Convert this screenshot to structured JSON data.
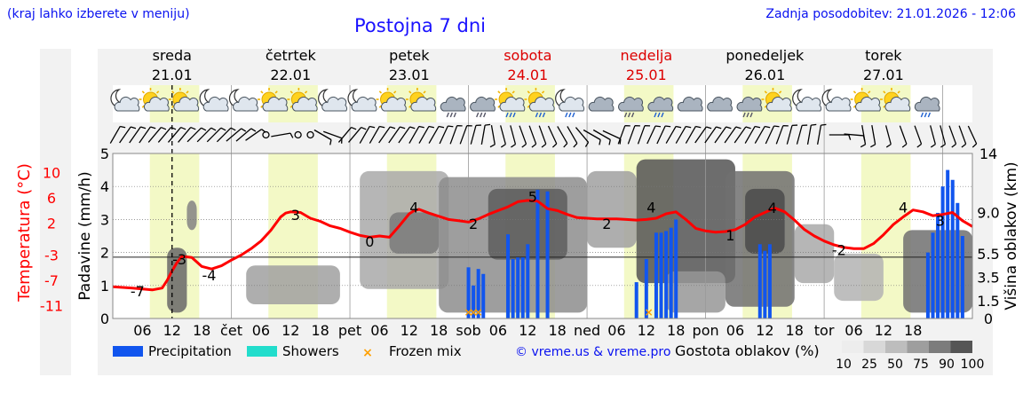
{
  "header": {
    "note": "(kraj lahko izberete v meniju)",
    "title": "Postojna 7 dni",
    "updated": "Zadnja posodobitev: 21.01.2026 - 12:06"
  },
  "footer": {
    "credit": "© vreme.us & vreme.pro",
    "legend_labels": [
      "Precipitation",
      "Showers",
      "Frozen mix"
    ],
    "cloud_title": "Gostota oblakov (%)",
    "cloud_ticks": [
      "10",
      "25",
      "50",
      "75",
      "90",
      "100"
    ],
    "cloud_scale_colors": [
      "#ededed",
      "#d8d8d8",
      "#bdbdbd",
      "#9e9e9e",
      "#7c7c7c",
      "#555555"
    ]
  },
  "colors": {
    "temperature": "#ff0000",
    "precipitation": "#1155ee",
    "showers": "#22ddcc",
    "frozen": "#ffa000",
    "daylight": "#f3f9c6",
    "title": "#1a12ff",
    "weekend": "#dd0000"
  },
  "chart_data": {
    "type": "line+bar",
    "title": "Postojna 7 dni",
    "days": [
      {
        "name": "sreda",
        "date": "21.01",
        "weekend": false
      },
      {
        "name": "četrtek",
        "date": "22.01",
        "weekend": false
      },
      {
        "name": "petek",
        "date": "23.01",
        "weekend": false
      },
      {
        "name": "sobota",
        "date": "24.01",
        "weekend": true
      },
      {
        "name": "nedelja",
        "date": "25.01",
        "weekend": true
      },
      {
        "name": "ponedeljek",
        "date": "26.01",
        "weekend": false
      },
      {
        "name": "torek",
        "date": "27.01",
        "weekend": false
      }
    ],
    "x_range_hours": [
      0,
      174
    ],
    "now_hour": 12,
    "x_ticks": [
      {
        "h": 6,
        "label": "06"
      },
      {
        "h": 12,
        "label": "12"
      },
      {
        "h": 18,
        "label": "18"
      },
      {
        "h": 24,
        "label": "čet"
      },
      {
        "h": 30,
        "label": "06"
      },
      {
        "h": 36,
        "label": "12"
      },
      {
        "h": 42,
        "label": "18"
      },
      {
        "h": 48,
        "label": "pet"
      },
      {
        "h": 54,
        "label": "06"
      },
      {
        "h": 60,
        "label": "12"
      },
      {
        "h": 66,
        "label": "18"
      },
      {
        "h": 72,
        "label": "sob"
      },
      {
        "h": 78,
        "label": "06"
      },
      {
        "h": 84,
        "label": "12"
      },
      {
        "h": 90,
        "label": "18"
      },
      {
        "h": 96,
        "label": "ned"
      },
      {
        "h": 102,
        "label": "06"
      },
      {
        "h": 108,
        "label": "12"
      },
      {
        "h": 114,
        "label": "18"
      },
      {
        "h": 120,
        "label": "pon"
      },
      {
        "h": 126,
        "label": "06"
      },
      {
        "h": 132,
        "label": "12"
      },
      {
        "h": 138,
        "label": "18"
      },
      {
        "h": 144,
        "label": "tor"
      },
      {
        "h": 150,
        "label": "06"
      },
      {
        "h": 156,
        "label": "12"
      },
      {
        "h": 162,
        "label": "18"
      }
    ],
    "daylight_hours": [
      [
        7.5,
        17.5
      ],
      [
        31.5,
        41.5
      ],
      [
        55.5,
        65.5
      ],
      [
        79.5,
        89.5
      ],
      [
        103.5,
        113.5
      ],
      [
        127.5,
        137.5
      ],
      [
        151.5,
        161.5
      ]
    ],
    "left_axis": {
      "label": "Padavine (mm/h)",
      "range": [
        0,
        5
      ],
      "ticks": [
        "0",
        "1",
        "2",
        "3",
        "4",
        "5"
      ]
    },
    "temperature_axis": {
      "label": "Temperatura (°C)",
      "range": [
        -13,
        13
      ],
      "ticks": [
        10,
        6,
        2,
        -3,
        -7,
        -11
      ]
    },
    "right_axis": {
      "label": "Višina oblakov (km)",
      "range": [
        0,
        14
      ],
      "ticks": [
        {
          "v": 0,
          "label": "0"
        },
        {
          "v": 1.5,
          "label": "1.5"
        },
        {
          "v": 3.5,
          "label": "3.5"
        },
        {
          "v": 5.5,
          "label": "5.5"
        },
        {
          "v": 9.0,
          "label": "9.0"
        },
        {
          "v": 14,
          "label": "14"
        }
      ]
    },
    "zero_degree_level_km": 5.2,
    "temperature": {
      "hours": [
        0,
        4,
        8,
        10,
        11,
        12,
        13,
        14,
        16,
        18,
        20,
        22,
        24,
        26,
        28,
        30,
        32,
        34,
        35,
        36,
        38,
        40,
        42,
        44,
        46,
        48,
        50,
        52,
        54,
        56,
        58,
        60,
        61,
        62,
        64,
        66,
        68,
        70,
        72,
        74,
        76,
        78,
        80,
        82,
        84,
        86,
        88,
        90,
        92,
        94,
        96,
        98,
        100,
        102,
        104,
        106,
        108,
        110,
        112,
        114,
        116,
        118,
        120,
        122,
        124,
        126,
        128,
        130,
        132,
        134,
        136,
        138,
        140,
        142,
        144,
        146,
        148,
        150,
        152,
        154,
        156,
        158,
        160,
        162,
        164,
        166,
        168,
        170,
        172,
        174
      ],
      "values": [
        -8.0,
        -8.2,
        -8.5,
        -8.2,
        -7.0,
        -5.5,
        -4.2,
        -3.2,
        -3.4,
        -4.8,
        -5.2,
        -4.7,
        -3.8,
        -3.0,
        -2.0,
        -0.8,
        0.9,
        3.0,
        3.6,
        3.8,
        3.7,
        2.8,
        2.3,
        1.6,
        1.2,
        0.6,
        0.1,
        -0.2,
        0.0,
        -0.2,
        1.6,
        3.5,
        4.0,
        4.2,
        3.6,
        3.1,
        2.6,
        2.4,
        2.2,
        2.7,
        3.4,
        4.0,
        4.6,
        5.4,
        5.6,
        5.5,
        4.3,
        4.0,
        3.4,
        2.9,
        2.8,
        2.7,
        2.7,
        2.7,
        2.6,
        2.5,
        2.6,
        2.8,
        3.5,
        3.8,
        2.6,
        1.2,
        0.8,
        0.6,
        0.7,
        1.0,
        1.8,
        3.0,
        3.7,
        4.4,
        3.8,
        2.5,
        1.0,
        0.0,
        -0.8,
        -1.4,
        -1.8,
        -2.0,
        -2.0,
        -1.2,
        0.2,
        1.8,
        3.0,
        4.1,
        3.8,
        3.2,
        3.4,
        3.7,
        2.4,
        1.5
      ]
    },
    "temperature_labels": [
      {
        "h": 5,
        "v": -9.5,
        "label": "-7"
      },
      {
        "h": 13.5,
        "v": -4.5,
        "label": "-3"
      },
      {
        "h": 19.5,
        "v": -7.0,
        "label": "-4"
      },
      {
        "h": 37,
        "v": 2.5,
        "label": "3"
      },
      {
        "h": 52,
        "v": -1.7,
        "label": "0"
      },
      {
        "h": 61,
        "v": 3.7,
        "label": "4"
      },
      {
        "h": 73,
        "v": 1.1,
        "label": "2"
      },
      {
        "h": 85,
        "v": 5.4,
        "label": "5"
      },
      {
        "h": 100,
        "v": 1.1,
        "label": "2"
      },
      {
        "h": 109,
        "v": 3.7,
        "label": "4"
      },
      {
        "h": 125,
        "v": -0.7,
        "label": "1"
      },
      {
        "h": 133.5,
        "v": 3.6,
        "label": "4"
      },
      {
        "h": 147,
        "v": -3.0,
        "label": "-2"
      },
      {
        "h": 160,
        "v": 3.7,
        "label": "4"
      },
      {
        "h": 167.5,
        "v": 1.6,
        "label": "3"
      }
    ],
    "precipitation_bars": [
      {
        "h": 72.0,
        "mm": 1.55
      },
      {
        "h": 73.0,
        "mm": 1.0
      },
      {
        "h": 74.0,
        "mm": 1.5
      },
      {
        "h": 75.0,
        "mm": 1.35
      },
      {
        "h": 80.0,
        "mm": 2.55
      },
      {
        "h": 81.0,
        "mm": 1.8
      },
      {
        "h": 82.0,
        "mm": 1.85
      },
      {
        "h": 83.0,
        "mm": 1.85
      },
      {
        "h": 84.0,
        "mm": 2.25
      },
      {
        "h": 86.0,
        "mm": 3.9
      },
      {
        "h": 88.0,
        "mm": 3.85
      },
      {
        "h": 106.0,
        "mm": 1.1
      },
      {
        "h": 108.0,
        "mm": 1.8
      },
      {
        "h": 110.0,
        "mm": 2.6
      },
      {
        "h": 111.0,
        "mm": 2.6
      },
      {
        "h": 112.0,
        "mm": 2.65
      },
      {
        "h": 113.0,
        "mm": 2.75
      },
      {
        "h": 114.0,
        "mm": 3.0
      },
      {
        "h": 131.0,
        "mm": 2.25
      },
      {
        "h": 132.0,
        "mm": 2.05
      },
      {
        "h": 133.0,
        "mm": 2.25
      },
      {
        "h": 165.0,
        "mm": 2.0
      },
      {
        "h": 166.0,
        "mm": 2.6
      },
      {
        "h": 167.0,
        "mm": 3.2
      },
      {
        "h": 168.0,
        "mm": 4.0
      },
      {
        "h": 169.0,
        "mm": 4.5
      },
      {
        "h": 170.0,
        "mm": 4.2
      },
      {
        "h": 171.0,
        "mm": 3.5
      },
      {
        "h": 172.0,
        "mm": 2.5
      }
    ],
    "frozen_mix_hours": [
      72.0,
      73.0,
      74.0,
      108.5
    ],
    "cloud_blobs": [
      {
        "h0": 11,
        "h1": 15,
        "km0": 0.5,
        "km1": 6,
        "d": 75
      },
      {
        "h0": 15,
        "h1": 17,
        "km0": 7.5,
        "km1": 10,
        "d": 60
      },
      {
        "h0": 27,
        "h1": 46,
        "km0": 1.2,
        "km1": 4.5,
        "d": 45
      },
      {
        "h0": 50,
        "h1": 68,
        "km0": 2.5,
        "km1": 12.5,
        "d": 40
      },
      {
        "h0": 56,
        "h1": 66,
        "km0": 5.5,
        "km1": 9.0,
        "d": 65
      },
      {
        "h0": 66,
        "h1": 96,
        "km0": 0.5,
        "km1": 12.0,
        "d": 55
      },
      {
        "h0": 76,
        "h1": 92,
        "km0": 5.0,
        "km1": 11.0,
        "d": 80
      },
      {
        "h0": 96,
        "h1": 106,
        "km0": 6.0,
        "km1": 12.5,
        "d": 45
      },
      {
        "h0": 106,
        "h1": 126,
        "km0": 3.0,
        "km1": 13.5,
        "d": 85
      },
      {
        "h0": 112,
        "h1": 124,
        "km0": 0.5,
        "km1": 4.0,
        "d": 50
      },
      {
        "h0": 124,
        "h1": 138,
        "km0": 1.0,
        "km1": 12.5,
        "d": 70
      },
      {
        "h0": 128,
        "h1": 136,
        "km0": 5.5,
        "km1": 11.0,
        "d": 90
      },
      {
        "h0": 138,
        "h1": 146,
        "km0": 3.0,
        "km1": 8.0,
        "d": 40
      },
      {
        "h0": 146,
        "h1": 156,
        "km0": 1.5,
        "km1": 5.5,
        "d": 35
      },
      {
        "h0": 160,
        "h1": 174,
        "km0": 0.5,
        "km1": 7.5,
        "d": 70
      }
    ],
    "weather_symbols": [
      {
        "h": 2,
        "icon": "moon-cloud"
      },
      {
        "h": 8,
        "icon": "sun-cloud"
      },
      {
        "h": 14,
        "icon": "sun-cloud"
      },
      {
        "h": 20,
        "icon": "moon-cloud"
      },
      {
        "h": 26,
        "icon": "moon-cloud"
      },
      {
        "h": 32,
        "icon": "sun-cloud"
      },
      {
        "h": 38,
        "icon": "sun-cloud"
      },
      {
        "h": 44,
        "icon": "moon-cloud"
      },
      {
        "h": 50,
        "icon": "moon-cloud"
      },
      {
        "h": 56,
        "icon": "sun-cloud"
      },
      {
        "h": 62,
        "icon": "sun-cloud"
      },
      {
        "h": 68,
        "icon": "cloud-snow"
      },
      {
        "h": 74,
        "icon": "cloud-snow"
      },
      {
        "h": 80,
        "icon": "sun-rain"
      },
      {
        "h": 86,
        "icon": "sun-rain"
      },
      {
        "h": 92,
        "icon": "moon-rain"
      },
      {
        "h": 98,
        "icon": "cloud"
      },
      {
        "h": 104,
        "icon": "cloud-snow"
      },
      {
        "h": 110,
        "icon": "cloud-rain"
      },
      {
        "h": 116,
        "icon": "cloud"
      },
      {
        "h": 122,
        "icon": "cloud"
      },
      {
        "h": 128,
        "icon": "cloud-snow"
      },
      {
        "h": 134,
        "icon": "sun-cloud"
      },
      {
        "h": 140,
        "icon": "moon-cloud"
      },
      {
        "h": 146,
        "icon": "moon-cloud"
      },
      {
        "h": 152,
        "icon": "sun-cloud"
      },
      {
        "h": 158,
        "icon": "sun-cloud"
      },
      {
        "h": 164,
        "icon": "cloud-rain"
      }
    ],
    "wind_barbs": [
      {
        "h": 0.5,
        "dir": 30,
        "kt": 10
      },
      {
        "h": 2.5,
        "dir": 35,
        "kt": 10
      },
      {
        "h": 4.5,
        "dir": 35,
        "kt": 10
      },
      {
        "h": 6.5,
        "dir": 35,
        "kt": 10
      },
      {
        "h": 8.5,
        "dir": 40,
        "kt": 10
      },
      {
        "h": 10.5,
        "dir": 40,
        "kt": 10
      },
      {
        "h": 12.5,
        "dir": 40,
        "kt": 10
      },
      {
        "h": 14.5,
        "dir": 40,
        "kt": 10
      },
      {
        "h": 16.5,
        "dir": 45,
        "kt": 10
      },
      {
        "h": 18.5,
        "dir": 45,
        "kt": 10
      },
      {
        "h": 20.5,
        "dir": 45,
        "kt": 10
      },
      {
        "h": 22.5,
        "dir": 45,
        "kt": 10
      },
      {
        "h": 24.5,
        "dir": 50,
        "kt": 10
      },
      {
        "h": 26.5,
        "dir": 50,
        "kt": 10
      },
      {
        "h": 28.5,
        "dir": 55,
        "kt": 10
      },
      {
        "h": 31.0,
        "dir": 0,
        "kt": 0
      },
      {
        "h": 34.0,
        "dir": 80,
        "kt": 10
      },
      {
        "h": 37.5,
        "dir": 0,
        "kt": 0
      },
      {
        "h": 40.0,
        "dir": 0,
        "kt": 0
      },
      {
        "h": 42.5,
        "dir": 120,
        "kt": 10
      },
      {
        "h": 44.5,
        "dir": 110,
        "kt": 10
      },
      {
        "h": 47.0,
        "dir": 40,
        "kt": 10
      },
      {
        "h": 49.0,
        "dir": 40,
        "kt": 10
      },
      {
        "h": 51.0,
        "dir": 30,
        "kt": 10
      },
      {
        "h": 53.0,
        "dir": 30,
        "kt": 10
      },
      {
        "h": 55.0,
        "dir": 35,
        "kt": 10
      },
      {
        "h": 57.0,
        "dir": 35,
        "kt": 10
      },
      {
        "h": 59.0,
        "dir": 35,
        "kt": 10
      },
      {
        "h": 61.0,
        "dir": 30,
        "kt": 10
      },
      {
        "h": 63.0,
        "dir": 30,
        "kt": 10
      },
      {
        "h": 65.0,
        "dir": 30,
        "kt": 10
      },
      {
        "h": 67.0,
        "dir": 25,
        "kt": 10
      },
      {
        "h": 69.0,
        "dir": 20,
        "kt": 10
      },
      {
        "h": 71.0,
        "dir": 20,
        "kt": 10
      },
      {
        "h": 73.0,
        "dir": 15,
        "kt": 10
      },
      {
        "h": 75.0,
        "dir": 10,
        "kt": 10
      },
      {
        "h": 77.0,
        "dir": 170,
        "kt": 10
      },
      {
        "h": 79.0,
        "dir": 165,
        "kt": 10
      },
      {
        "h": 81.0,
        "dir": 165,
        "kt": 10
      },
      {
        "h": 83.0,
        "dir": 160,
        "kt": 10
      },
      {
        "h": 85.0,
        "dir": 160,
        "kt": 10
      },
      {
        "h": 87.0,
        "dir": 160,
        "kt": 10
      },
      {
        "h": 89.0,
        "dir": 155,
        "kt": 10
      },
      {
        "h": 91.0,
        "dir": 150,
        "kt": 10
      },
      {
        "h": 93.0,
        "dir": 150,
        "kt": 10
      },
      {
        "h": 95.0,
        "dir": 140,
        "kt": 10
      },
      {
        "h": 97.0,
        "dir": 120,
        "kt": 10
      },
      {
        "h": 99.0,
        "dir": 120,
        "kt": 10
      },
      {
        "h": 101.0,
        "dir": 115,
        "kt": 10
      },
      {
        "h": 103.0,
        "dir": 20,
        "kt": 10
      },
      {
        "h": 105.0,
        "dir": 20,
        "kt": 10
      },
      {
        "h": 107.0,
        "dir": 20,
        "kt": 10
      },
      {
        "h": 109.0,
        "dir": 25,
        "kt": 10
      },
      {
        "h": 111.0,
        "dir": 25,
        "kt": 10
      },
      {
        "h": 113.0,
        "dir": 30,
        "kt": 10
      },
      {
        "h": 115.0,
        "dir": 30,
        "kt": 10
      },
      {
        "h": 117.0,
        "dir": 30,
        "kt": 10
      },
      {
        "h": 119.0,
        "dir": 35,
        "kt": 10
      },
      {
        "h": 121.0,
        "dir": 35,
        "kt": 10
      },
      {
        "h": 123.0,
        "dir": 35,
        "kt": 10
      },
      {
        "h": 125.0,
        "dir": 35,
        "kt": 10
      },
      {
        "h": 127.0,
        "dir": 35,
        "kt": 10
      },
      {
        "h": 129.0,
        "dir": 30,
        "kt": 10
      },
      {
        "h": 131.0,
        "dir": 30,
        "kt": 10
      },
      {
        "h": 133.0,
        "dir": 25,
        "kt": 10
      },
      {
        "h": 135.0,
        "dir": 20,
        "kt": 10
      },
      {
        "h": 137.0,
        "dir": 15,
        "kt": 10
      },
      {
        "h": 139.0,
        "dir": 15,
        "kt": 10
      },
      {
        "h": 141.0,
        "dir": 10,
        "kt": 10
      },
      {
        "h": 143.0,
        "dir": 10,
        "kt": 10
      },
      {
        "h": 147.0,
        "dir": 90,
        "kt": 10
      },
      {
        "h": 150.0,
        "dir": 95,
        "kt": 10
      },
      {
        "h": 152.0,
        "dir": 170,
        "kt": 10
      },
      {
        "h": 154.0,
        "dir": 170,
        "kt": 10
      },
      {
        "h": 157.0,
        "dir": 165,
        "kt": 10
      },
      {
        "h": 160.0,
        "dir": 160,
        "kt": 10
      },
      {
        "h": 163.0,
        "dir": 160,
        "kt": 10
      },
      {
        "h": 166.0,
        "dir": 165,
        "kt": 10
      },
      {
        "h": 168.0,
        "dir": 165,
        "kt": 10
      },
      {
        "h": 170.0,
        "dir": 160,
        "kt": 10
      },
      {
        "h": 172.0,
        "dir": 160,
        "kt": 10
      },
      {
        "h": 174.0,
        "dir": 155,
        "kt": 10
      }
    ]
  }
}
